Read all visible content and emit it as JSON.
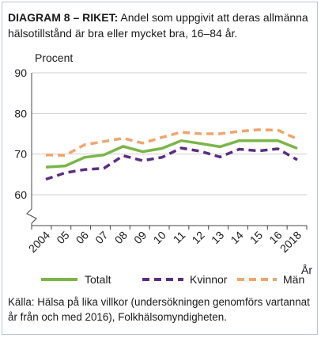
{
  "title": {
    "label": "DIAGRAM 8 – RIKET:",
    "text": "Andel som uppgivit att deras allmänna hälsotillstånd är bra eller mycket bra, 16–84 år."
  },
  "source": "Källa: Hälsa på lika villkor (undersökningen genomförs vartannat år från och med 2016), Folkhälsomyndigheten.",
  "colors": {
    "totalt": "#7ab648",
    "kvinnor": "#5b2d86",
    "man": "#f4a46a",
    "grid": "#cfcfcf",
    "axis": "#444444"
  },
  "chart_data": {
    "type": "line",
    "ylabel": "Procent",
    "xlabel": "År",
    "ylim": [
      55,
      90
    ],
    "yticks": [
      60,
      70,
      80,
      90
    ],
    "y_axis_break": true,
    "grid": true,
    "legend_position": "bottom",
    "x": [
      "2004",
      "05",
      "06",
      "07",
      "08",
      "09",
      "10",
      "11",
      "12",
      "13",
      "14",
      "15",
      "16",
      "2018"
    ],
    "series": [
      {
        "name": "Totalt",
        "style": "solid",
        "color": "#7ab648",
        "values": [
          66.8,
          67.1,
          69.2,
          69.8,
          71.9,
          70.6,
          71.4,
          73.3,
          72.6,
          71.8,
          73.3,
          73.3,
          73.3,
          71.4
        ]
      },
      {
        "name": "Kvinnor",
        "style": "dashed",
        "color": "#5b2d86",
        "values": [
          63.8,
          65.4,
          66.2,
          66.5,
          69.6,
          68.4,
          69.2,
          71.5,
          70.7,
          69.3,
          71.2,
          70.8,
          71.3,
          68.6
        ]
      },
      {
        "name": "Män",
        "style": "dashed",
        "color": "#f4a46a",
        "values": [
          69.8,
          69.7,
          72.3,
          73.1,
          73.9,
          72.7,
          74.1,
          75.4,
          75.0,
          75.0,
          75.6,
          76.0,
          75.9,
          73.7
        ]
      }
    ]
  }
}
